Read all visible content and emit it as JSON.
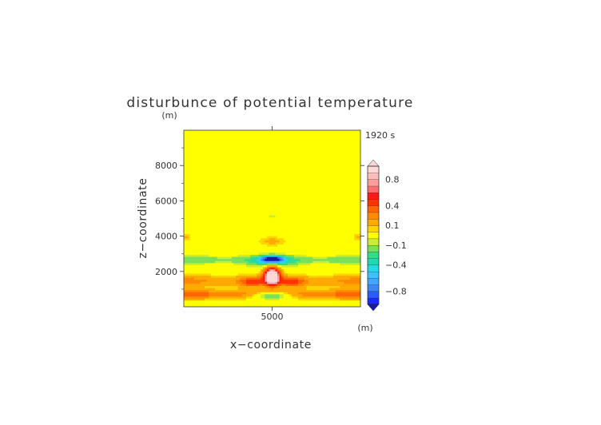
{
  "chart_data": {
    "type": "heatmap",
    "title": "disturbunce of potential temperature",
    "xlabel": "x−coordinate",
    "ylabel": "z−coordinate",
    "x_unit": "(m)",
    "z_unit": "(m)",
    "time_label": "1920 s",
    "xlim": [
      0,
      10000
    ],
    "zlim": [
      0,
      10000
    ],
    "x_ticks": [
      {
        "value": 5000,
        "label": "5000"
      }
    ],
    "z_ticks": [
      {
        "value": 2000,
        "label": "2000"
      },
      {
        "value": 4000,
        "label": "4000"
      },
      {
        "value": 6000,
        "label": "6000"
      },
      {
        "value": 8000,
        "label": "8000"
      }
    ],
    "colorbar": {
      "levels": [
        -1.0,
        -0.9,
        -0.8,
        -0.7,
        -0.6,
        -0.5,
        -0.4,
        -0.3,
        -0.2,
        -0.1,
        -0.05,
        0.05,
        0.1,
        0.2,
        0.3,
        0.4,
        0.5,
        0.6,
        0.7,
        0.8,
        0.9,
        1.0
      ],
      "colors": [
        "#1a2bff",
        "#2a5cff",
        "#3c86ff",
        "#42a6ff",
        "#3cc3ff",
        "#27d9e6",
        "#1fd9b3",
        "#33dd88",
        "#7ae05a",
        "#c8ee33",
        "#ffff00",
        "#ffd400",
        "#ffaa00",
        "#ff8a00",
        "#ff6600",
        "#ff3300",
        "#ff1a1a",
        "#ff6e6e",
        "#ff9c9c",
        "#ffbdbd",
        "#ffd9d9"
      ],
      "under_color": "#1a1aa6",
      "over_color": "#ffd6d6",
      "tick_labels": [
        {
          "value": 0.8,
          "label": "0.8"
        },
        {
          "value": 0.4,
          "label": "0.4"
        },
        {
          "value": 0.1,
          "label": "0.1"
        },
        {
          "value": -0.1,
          "label": "−0.1"
        },
        {
          "value": -0.4,
          "label": "−0.4"
        },
        {
          "value": -0.8,
          "label": "−0.8"
        }
      ]
    },
    "field_features": [
      {
        "name": "warm-core",
        "x": 5000,
        "z": 1750,
        "sx": 420,
        "sz": 480,
        "amp": 1.25
      },
      {
        "name": "cold-cap",
        "x": 5000,
        "z": 2700,
        "sx": 620,
        "sz": 180,
        "amp": -0.95
      },
      {
        "name": "cold-cap-wide",
        "x": 5000,
        "z": 2550,
        "sx": 1300,
        "sz": 320,
        "amp": -0.25
      },
      {
        "name": "cold-base",
        "x": 5000,
        "z": 650,
        "sx": 1200,
        "sz": 230,
        "amp": -0.55
      },
      {
        "name": "warm-band-low",
        "band_z": 700,
        "sz": 260,
        "amp": 0.33
      },
      {
        "name": "warm-band-mid",
        "band_z": 1450,
        "sz": 330,
        "amp": 0.2
      },
      {
        "name": "warm-arm-left",
        "x": 3800,
        "z": 1400,
        "sx": 650,
        "sz": 260,
        "amp": 0.3
      },
      {
        "name": "warm-arm-right",
        "x": 6200,
        "z": 1400,
        "sx": 650,
        "sz": 260,
        "amp": 0.3
      },
      {
        "name": "warm-cap-top",
        "x": 5000,
        "z": 3700,
        "sx": 800,
        "sz": 260,
        "amp": 0.13
      },
      {
        "name": "cold-band",
        "band_z": 2650,
        "sz": 220,
        "amp": -0.16
      },
      {
        "name": "warm-edge-left",
        "x": 0,
        "z": 3950,
        "sx": 400,
        "sz": 200,
        "amp": 0.13
      },
      {
        "name": "warm-edge-right",
        "x": 10000,
        "z": 3950,
        "sx": 400,
        "sz": 200,
        "amp": 0.13
      },
      {
        "name": "weak-cold-top",
        "x": 5000,
        "z": 5150,
        "sx": 280,
        "sz": 100,
        "amp": -0.1
      }
    ]
  }
}
